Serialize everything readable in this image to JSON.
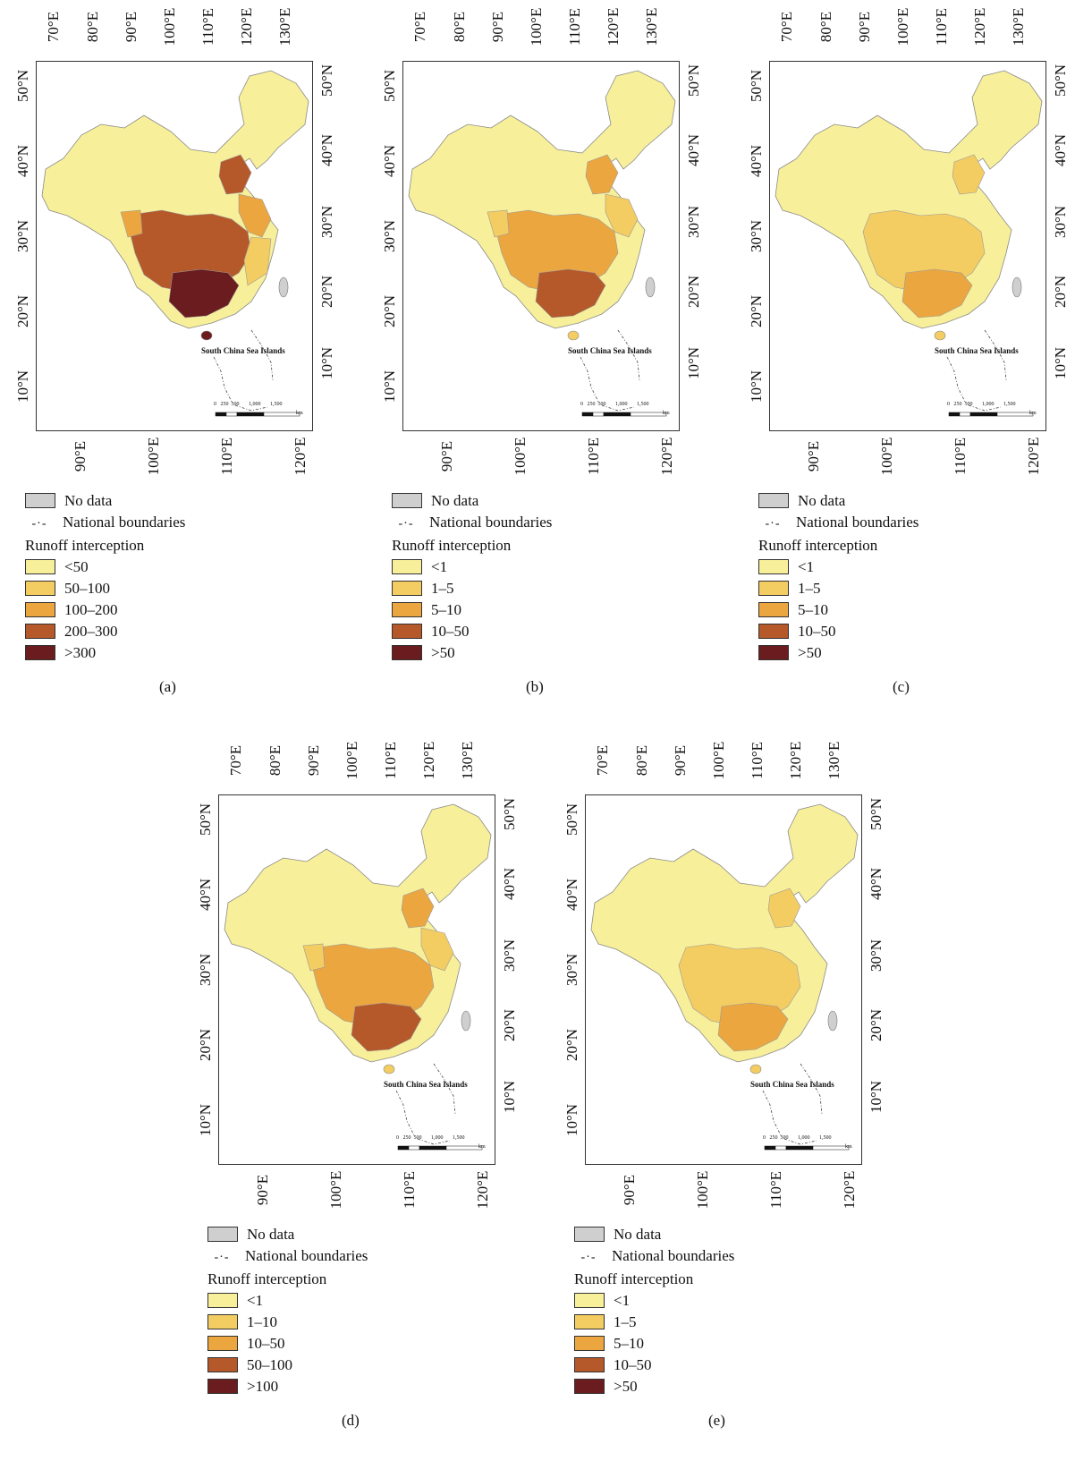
{
  "common": {
    "top_ticks": [
      "70°E",
      "80°E",
      "90°E",
      "100°E",
      "110°E",
      "120°E",
      "130°E"
    ],
    "bottom_ticks": [
      "90°E",
      "100°E",
      "110°E",
      "120°E"
    ],
    "left_ticks": [
      "50°N",
      "40°N",
      "30°N",
      "20°N",
      "10°N"
    ],
    "right_ticks": [
      "50°N",
      "40°N",
      "30°N",
      "20°N",
      "10°N"
    ],
    "inset_title": "South China Sea Islands",
    "scale_labels": [
      "0",
      "250",
      "500",
      "1,000",
      "1,500",
      "km"
    ],
    "legend_no_data": "No data",
    "legend_boundaries": "National boundaries",
    "legend_boundaries_symbol": "-·-",
    "legend_title": "Runoff interception",
    "no_data_color": "#cfcfcf"
  },
  "panels": [
    {
      "caption": "(a)",
      "classes": [
        {
          "label": "<50",
          "color": "#f7ef9a"
        },
        {
          "label": "50–100",
          "color": "#f3cc62"
        },
        {
          "label": "100–200",
          "color": "#eba640"
        },
        {
          "label": "200–300",
          "color": "#b5582a"
        },
        {
          "label": ">300",
          "color": "#6b1c1e"
        }
      ]
    },
    {
      "caption": "(b)",
      "classes": [
        {
          "label": "<1",
          "color": "#f7ef9a"
        },
        {
          "label": "1–5",
          "color": "#f3cc62"
        },
        {
          "label": "5–10",
          "color": "#eba640"
        },
        {
          "label": "10–50",
          "color": "#b5582a"
        },
        {
          "label": ">50",
          "color": "#6b1c1e"
        }
      ]
    },
    {
      "caption": "(c)",
      "classes": [
        {
          "label": "<1",
          "color": "#f7ef9a"
        },
        {
          "label": "1–5",
          "color": "#f3cc62"
        },
        {
          "label": "5–10",
          "color": "#eba640"
        },
        {
          "label": "10–50",
          "color": "#b5582a"
        },
        {
          "label": ">50",
          "color": "#6b1c1e"
        }
      ]
    },
    {
      "caption": "(d)",
      "classes": [
        {
          "label": "<1",
          "color": "#f7ef9a"
        },
        {
          "label": "1–10",
          "color": "#f3cc62"
        },
        {
          "label": "10–50",
          "color": "#eba640"
        },
        {
          "label": "50–100",
          "color": "#b5582a"
        },
        {
          "label": ">100",
          "color": "#6b1c1e"
        }
      ]
    },
    {
      "caption": "(e)",
      "classes": [
        {
          "label": "<1",
          "color": "#f7ef9a"
        },
        {
          "label": "1–5",
          "color": "#f3cc62"
        },
        {
          "label": "5–10",
          "color": "#eba640"
        },
        {
          "label": "10–50",
          "color": "#b5582a"
        },
        {
          "label": ">50",
          "color": "#6b1c1e"
        }
      ]
    }
  ]
}
